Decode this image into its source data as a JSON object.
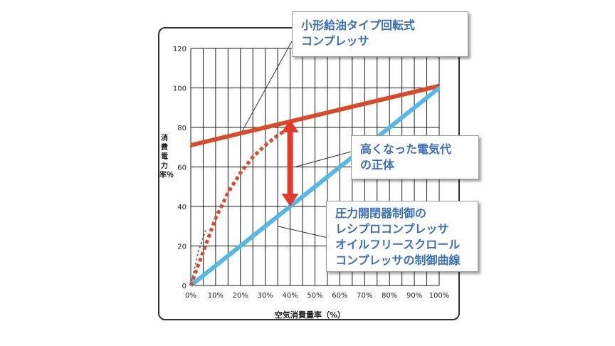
{
  "colors": {
    "compressor_curve": "#d94a2a",
    "ideal_line": "#55b8e6",
    "callout_text": "#3a6fb8",
    "arrow": "#e03b2b"
  },
  "callouts": {
    "top": [
      "小形給油タイプ回転式",
      "コンプレッサ"
    ],
    "mid": [
      "高くなった電気代",
      "の正体"
    ],
    "bottom": [
      "圧力開閉器制御の",
      "レシプロコンプレッサ",
      "オイルフリースクロール",
      "コンプレッサの制御曲線"
    ]
  },
  "chart_data": {
    "type": "line",
    "ylabel": "消費電力率％",
    "xlabel": "空気消費量率（%）",
    "x_ticks": [
      "0%",
      "10%",
      "20%",
      "30%",
      "40%",
      "50%",
      "60%",
      "70%",
      "80%",
      "90%",
      "100%"
    ],
    "y_ticks": [
      "0",
      "20",
      "40",
      "60",
      "80",
      "100",
      "120"
    ],
    "xlim": [
      0,
      100
    ],
    "ylim": [
      0,
      120
    ],
    "grid": true,
    "series": [
      {
        "style": "solid-thick",
        "color": "#d94a2a",
        "x": [
          0,
          100
        ],
        "y": [
          71,
          101
        ]
      },
      {
        "style": "solid-thick",
        "color": "#55b8e6",
        "x": [
          0,
          100
        ],
        "y": [
          0,
          100
        ]
      },
      {
        "style": "dotted",
        "color": "#d94a2a",
        "x": [
          0,
          5,
          10,
          15,
          20,
          25,
          30,
          35,
          40
        ],
        "y": [
          0,
          17,
          34,
          47,
          57,
          65,
          71,
          76,
          80
        ]
      },
      {
        "style": "dotted-thin",
        "color": "#777777",
        "x": [
          0,
          3,
          6
        ],
        "y": [
          0,
          17,
          28
        ]
      }
    ],
    "annotations": [
      {
        "type": "double-arrow",
        "color": "#e03b2b",
        "x": 40,
        "y_from": 40,
        "y_to": 84
      }
    ]
  }
}
